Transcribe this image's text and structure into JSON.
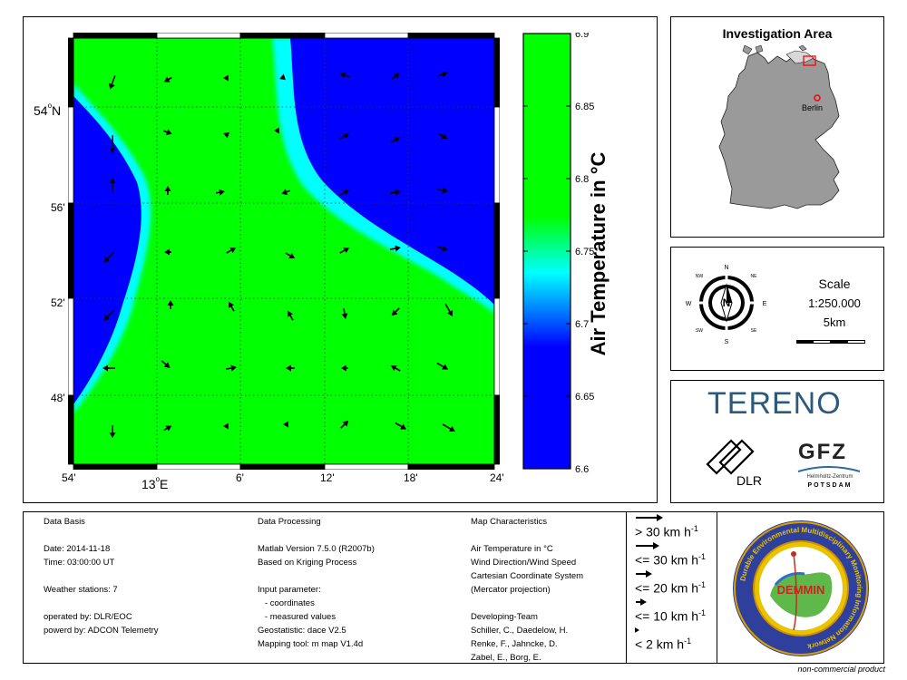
{
  "map": {
    "lat_ticks": [
      {
        "text": "54",
        "sup": "o",
        "suffix": "N"
      },
      {
        "text": "56'"
      },
      {
        "text": "52'"
      },
      {
        "text": "48'"
      }
    ],
    "lon_ticks": [
      {
        "text": "54'"
      },
      {
        "text": "13",
        "sup": "o",
        "suffix": "E"
      },
      {
        "text": "6'"
      },
      {
        "text": "12'"
      },
      {
        "text": "18'"
      },
      {
        "text": "24'"
      }
    ]
  },
  "colorbar": {
    "label": "Air Temperature in °C",
    "ticks": [
      "6.9",
      "6.85",
      "6.8",
      "6.75",
      "6.7",
      "6.65",
      "6.6"
    ],
    "min": 6.6,
    "max": 6.9,
    "colors": {
      "high": "#00ff00",
      "mid": "#00ffff",
      "low": "#0000ff"
    }
  },
  "investigation": {
    "title": "Investigation Area",
    "city": "Berlin",
    "country_color": "#9a9a9a",
    "marker_color": "#ff0000"
  },
  "compass": {
    "n": "N",
    "s": "S",
    "e": "E",
    "w": "W",
    "nw": "NW",
    "ne": "NE",
    "sw": "SW",
    "se": "SE"
  },
  "scale": {
    "title": "Scale",
    "ratio": "1:250.000",
    "distance": "5km"
  },
  "logos": {
    "tereno": "TERENO",
    "dlr": "DLR",
    "gfz": "GFZ",
    "gfz_sub1": "Helmholtz-Zentrum",
    "gfz_sub2": "POTSDAM",
    "demmin": "DEMMIN",
    "demmin_ring": "Durable Environmental Multidisciplinary Monitoring Information Network"
  },
  "info": {
    "data_basis": {
      "title": "Data Basis",
      "lines": [
        "",
        "Date: 2014-11-18",
        "Time: 03:00:00 UT",
        "",
        "Weather stations: 7",
        "",
        "operated by: DLR/EOC",
        "powerd by: ADCON Telemetry"
      ]
    },
    "data_processing": {
      "title": "Data Processing",
      "lines": [
        "",
        "Matlab Version 7.5.0 (R2007b)",
        "Based on Kriging Process",
        "",
        "Input parameter:",
        "   - coordinates",
        "   - measured values",
        "Geostatistic: dace V2.5",
        "Mapping tool: m map V1.4d"
      ]
    },
    "map_characteristics": {
      "title": "Map Characteristics",
      "lines": [
        "",
        "Air Temperature in °C",
        "Wind Direction/Wind Speed",
        "Cartesian Coordinate System",
        "(Mercator projection)",
        "",
        "Developing-Team",
        "Schiller, C., Daedelow, H.",
        "Renke, F., Jahncke, D.",
        "Zabel, E., Borg, E."
      ]
    }
  },
  "speed_legend": [
    {
      "prefix": ">",
      "value": "30 km h",
      "exp": "-1"
    },
    {
      "prefix": "<=",
      "value": "30 km h",
      "exp": "-1"
    },
    {
      "prefix": "<=",
      "value": "20 km h",
      "exp": "-1"
    },
    {
      "prefix": "<=",
      "value": "10 km h",
      "exp": "-1"
    },
    {
      "prefix": "<",
      "value": "2 km h",
      "exp": "-1"
    }
  ],
  "footer": "non-commercial product"
}
